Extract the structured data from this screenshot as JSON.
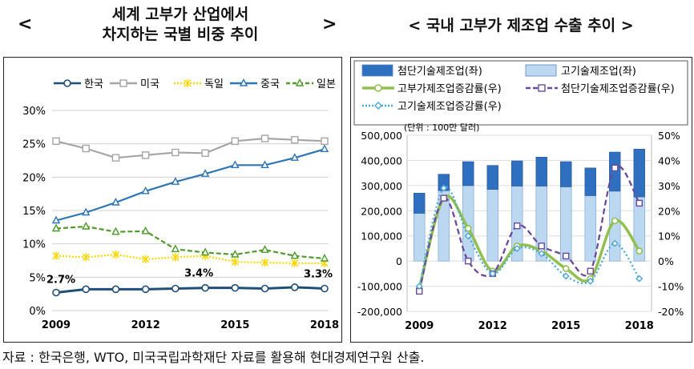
{
  "left_heading": {
    "open": "<",
    "line1": "세계 고부가 산업에서",
    "line2": "차지하는 국별 비중 추이",
    "close": ">"
  },
  "right_heading": {
    "text": "< 국내 고부가 제조업 수출 추이 >"
  },
  "source": "자료 : 한국은행, WTO, 미국국립과학재단 자료를 활용해 현대경제연구원 산출.",
  "chart_data": [
    {
      "type": "line",
      "x": [
        2009,
        2010,
        2011,
        2012,
        2013,
        2014,
        2015,
        2016,
        2017,
        2018
      ],
      "x_ticks": [
        "2009",
        "2012",
        "2015",
        "2018"
      ],
      "y_ticks": [
        "0%",
        "5%",
        "10%",
        "15%",
        "20%",
        "25%",
        "30%"
      ],
      "ylim": [
        0,
        30
      ],
      "legend_position": "top",
      "series": [
        {
          "name": "한국",
          "color": "#1f4e79",
          "marker": "circle",
          "values": [
            2.7,
            3.2,
            3.2,
            3.2,
            3.3,
            3.4,
            3.4,
            3.3,
            3.5,
            3.3
          ]
        },
        {
          "name": "미국",
          "color": "#a6a6a6",
          "marker": "square",
          "values": [
            25.4,
            24.3,
            22.9,
            23.3,
            23.7,
            23.6,
            25.4,
            25.8,
            25.6,
            25.4
          ]
        },
        {
          "name": "독일",
          "color": "#ffd700",
          "marker": "x",
          "values": [
            8.2,
            8.0,
            8.4,
            7.7,
            8.0,
            8.2,
            7.3,
            7.2,
            7.1,
            7.1
          ]
        },
        {
          "name": "중국",
          "color": "#2e75b6",
          "marker": "triangle",
          "values": [
            13.5,
            14.7,
            16.2,
            17.9,
            19.3,
            20.5,
            21.8,
            21.8,
            22.9,
            24.2
          ]
        },
        {
          "name": "일본",
          "color": "#4e9a2a",
          "marker": "triangle",
          "values": [
            12.3,
            12.6,
            11.8,
            11.9,
            9.2,
            8.7,
            8.4,
            9.1,
            8.2,
            7.8
          ]
        }
      ],
      "annotations": [
        "2.7%",
        "3.4%",
        "3.3%"
      ]
    },
    {
      "type": "bar+line",
      "unit_note": "(단위 : 100만 달러)",
      "x": [
        2009,
        2010,
        2011,
        2012,
        2013,
        2014,
        2015,
        2016,
        2017,
        2018
      ],
      "x_ticks": [
        "2009",
        "2012",
        "2015",
        "2018"
      ],
      "y_left_ticks": [
        "500,000",
        "400,000",
        "300,000",
        "200,000",
        "100,000",
        "0",
        "-100,000",
        "-200,000"
      ],
      "y_left_lim": [
        -200000,
        500000
      ],
      "y_right_ticks": [
        "50%",
        "40%",
        "30%",
        "20%",
        "10%",
        "0%",
        "-10%",
        "-20%"
      ],
      "y_right_lim": [
        -20,
        50
      ],
      "legend_position": "top",
      "stacked_bars": [
        {
          "name": "첨단기술제조업(좌)",
          "color": "#2f6fbf",
          "values": [
            80000,
            65000,
            95000,
            95000,
            100000,
            115000,
            100000,
            110000,
            155000,
            190000
          ]
        },
        {
          "name": "고기술제조업(좌)",
          "color": "#bcd7f0",
          "values": [
            190000,
            280000,
            300000,
            285000,
            298000,
            298000,
            295000,
            260000,
            278000,
            255000
          ]
        }
      ],
      "lines": [
        {
          "name": "고부가제조업증감률(우)",
          "color": "#92c050",
          "style": "solid",
          "values": [
            -11,
            25,
            13,
            -4,
            6,
            4,
            -3,
            -7,
            16,
            4
          ]
        },
        {
          "name": "첨단기술제조업증감률(우)",
          "color": "#6a4a9c",
          "style": "dashed",
          "values": [
            -12,
            25,
            0,
            -5,
            14,
            6,
            2,
            -4,
            37,
            23
          ]
        },
        {
          "name": "고기술제조업증감률(우)",
          "color": "#4aa8d8",
          "style": "dotted",
          "values": [
            -10,
            29,
            10,
            -5,
            5,
            3,
            -6,
            -8,
            7,
            -7
          ]
        }
      ]
    }
  ]
}
